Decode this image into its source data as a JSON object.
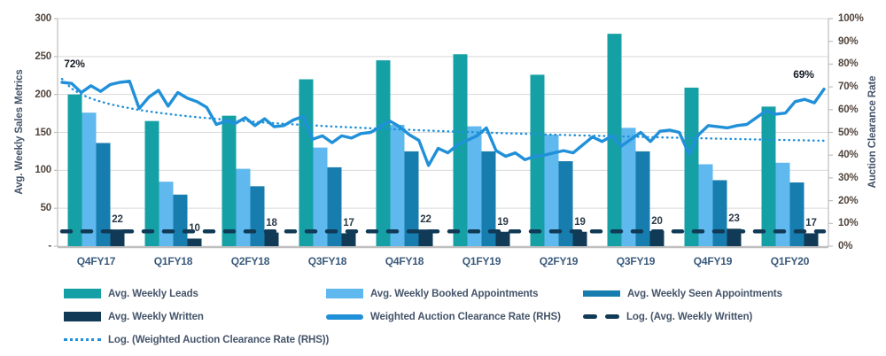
{
  "chart_data": {
    "type": "combo-bar-line",
    "categories": [
      "Q4FY17",
      "Q1FY18",
      "Q2FY18",
      "Q3FY18",
      "Q4FY18",
      "Q1FY19",
      "Q2FY19",
      "Q3FY19",
      "Q4FY19",
      "Q1FY20"
    ],
    "axes": {
      "left": {
        "title": "Avg. Weekly Sales Metrics",
        "min": 0,
        "max": 300,
        "tick_values": [
          300,
          250,
          200,
          150,
          100,
          50,
          0
        ],
        "tick_labels": [
          "300",
          "250",
          "200",
          "150",
          "100",
          "50",
          "-"
        ]
      },
      "right": {
        "title": "Auction Clearance Rate",
        "min": 0,
        "max": 100,
        "tick_values": [
          100,
          90,
          80,
          70,
          60,
          50,
          40,
          30,
          20,
          10,
          0
        ],
        "tick_labels": [
          "100%",
          "90%",
          "80%",
          "70%",
          "60%",
          "50%",
          "40%",
          "30%",
          "20%",
          "10%",
          "0%"
        ]
      }
    },
    "grid": true,
    "bar_series": [
      {
        "name": "Avg. Weekly Leads",
        "color": "#14A0A5",
        "values": [
          200,
          165,
          172,
          220,
          245,
          253,
          226,
          280,
          209,
          184
        ]
      },
      {
        "name": "Avg. Weekly Booked Appointments",
        "color": "#5FB8EE",
        "values": [
          176,
          85,
          102,
          130,
          160,
          158,
          147,
          156,
          108,
          110
        ]
      },
      {
        "name": "Avg. Weekly Seen Appointments",
        "color": "#177CAE",
        "values": [
          136,
          68,
          79,
          104,
          125,
          125,
          112,
          125,
          87,
          84
        ]
      },
      {
        "name": "Avg. Weekly Written",
        "color": "#103A56",
        "show_labels": true,
        "values": [
          22,
          10,
          18,
          17,
          22,
          19,
          19,
          20,
          23,
          17
        ]
      }
    ],
    "line_series": [
      {
        "name": "Weighted Auction Clearance Rate (RHS)",
        "axis": "right",
        "style": "solid",
        "color": "#2090D9",
        "values": [
          72,
          71.5,
          67.5,
          70.5,
          68,
          71,
          72,
          72.5,
          60.5,
          65.5,
          68.5,
          61.5,
          67.5,
          65,
          63.5,
          61,
          53.5,
          55,
          54,
          56.5,
          53,
          56,
          52.5,
          53,
          55.5,
          57,
          47,
          48.5,
          45.5,
          48.5,
          47.5,
          49.5,
          50,
          52.5,
          55,
          52.5,
          49,
          46.5,
          35.5,
          43,
          41,
          44.5,
          46.5,
          48.5,
          52,
          42,
          39.5,
          41,
          38,
          39.5,
          40,
          41,
          42,
          41,
          44.5,
          48,
          46,
          48.5,
          44,
          47,
          50,
          46,
          50.5,
          51,
          50,
          40.5,
          49,
          53,
          52.5,
          52,
          53,
          53.5,
          56.5,
          59.5,
          58,
          58.5,
          63.5,
          64.5,
          63,
          69
        ]
      },
      {
        "name": "Log. (Avg. Weekly Written)",
        "axis": "left",
        "style": "dashed",
        "color": "#103A56",
        "flat_value": 19.5
      },
      {
        "name": "Log. (Weighted Auction Clearance Rate (RHS))",
        "axis": "right",
        "style": "dotted",
        "color": "#2090D9",
        "log_fit": {
          "a": 73.5,
          "b": 6.2
        }
      }
    ],
    "annotations": [
      {
        "text": "72%",
        "anchor": "first-line-point"
      },
      {
        "text": "69%",
        "anchor": "last-line-point"
      }
    ],
    "colors": {
      "gridline": "#D9D9D9",
      "axis_border": "#BFBFBF"
    }
  },
  "legend": {
    "items": [
      {
        "label": "Avg. Weekly Leads",
        "swatch": "bar",
        "color": "#14A0A5"
      },
      {
        "label": "Avg. Weekly Booked Appointments",
        "swatch": "bar",
        "color": "#5FB8EE"
      },
      {
        "label": "Avg. Weekly Seen Appointments",
        "swatch": "barthin",
        "color": "#177CAE"
      },
      {
        "label": "Avg. Weekly Written",
        "swatch": "bar",
        "color": "#103A56"
      },
      {
        "label": "Weighted Auction Clearance Rate (RHS)",
        "swatch": "round-line",
        "color": "#2090D9"
      },
      {
        "label": "Log. (Avg. Weekly Written)",
        "swatch": "dashes",
        "color": "#103A56"
      },
      {
        "label": "Log. (Weighted Auction Clearance Rate (RHS))",
        "swatch": "dots",
        "color": "#2090D9"
      }
    ]
  }
}
